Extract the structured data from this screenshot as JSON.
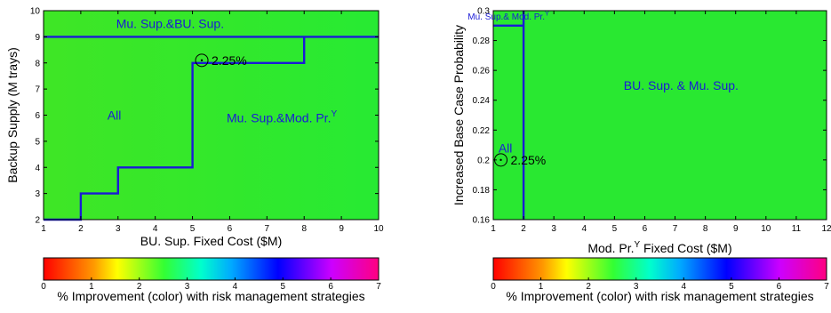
{
  "chart_data": [
    {
      "type": "heatmap",
      "panel": "left",
      "xlabel": "BU. Sup. Fixed Cost ($M)",
      "ylabel": "Backup Supply (M trays)",
      "xlim": [
        1,
        10
      ],
      "ylim": [
        2,
        10
      ],
      "x_ticks": [
        "1",
        "2",
        "3",
        "4",
        "5",
        "6",
        "7",
        "8",
        "9",
        "10"
      ],
      "y_ticks": [
        "2",
        "3",
        "4",
        "5",
        "6",
        "7",
        "8",
        "9",
        "10"
      ],
      "grid": false,
      "fill_color_value_range": [
        1.85,
        2.3
      ],
      "boundary_lines": [
        {
          "x": [
            1,
            10
          ],
          "y": [
            9,
            9
          ]
        },
        {
          "x": [
            1,
            2,
            2,
            3,
            3,
            5,
            5,
            8,
            8
          ],
          "y": [
            2,
            2,
            3,
            3,
            4,
            4,
            8,
            8,
            9
          ]
        }
      ],
      "region_labels": [
        {
          "text": "Mu. Sup.&BU. Sup.",
          "x": 4.4,
          "y": 9.5
        },
        {
          "text": "All",
          "x": 2.9,
          "y": 6.0
        },
        {
          "text": "Mu. Sup.&Mod. Pr.",
          "superscript": "Y",
          "x": 7.4,
          "y": 5.9
        }
      ],
      "marker": {
        "x": 5.25,
        "y": 8.1,
        "label": "2.25%"
      }
    },
    {
      "type": "heatmap",
      "panel": "right",
      "xlabel": "Mod. Pr.",
      "xlabel_superscript": "Y",
      "xlabel_suffix": " Fixed Cost ($M)",
      "ylabel": "Increased Base Case Probability",
      "xlim": [
        1,
        12
      ],
      "ylim": [
        0.16,
        0.3
      ],
      "x_ticks": [
        "1",
        "2",
        "3",
        "4",
        "5",
        "6",
        "7",
        "8",
        "9",
        "10",
        "11",
        "12"
      ],
      "y_ticks": [
        "0.16",
        "0.18",
        "0.2",
        "0.22",
        "0.24",
        "0.26",
        "0.28",
        "0.3"
      ],
      "grid": false,
      "fill_color_value_range": [
        2.0,
        2.0
      ],
      "boundary_lines": [
        {
          "x": [
            2,
            2
          ],
          "y": [
            0.16,
            0.3
          ]
        },
        {
          "x": [
            1,
            2
          ],
          "y": [
            0.29,
            0.29
          ]
        }
      ],
      "region_labels": [
        {
          "text": "Mu. Sup.& Mod. Pr.",
          "superscript": "Y",
          "x": 1.5,
          "y": 0.296,
          "small": true
        },
        {
          "text": "BU. Sup. & Mu. Sup.",
          "x": 7.2,
          "y": 0.25
        },
        {
          "text": "All",
          "x": 1.4,
          "y": 0.208
        }
      ],
      "marker": {
        "x": 1.25,
        "y": 0.2,
        "label": "2.25%"
      }
    }
  ],
  "colorbars": [
    {
      "panel": "left",
      "ticks": [
        "0",
        "1",
        "2",
        "3",
        "4",
        "5",
        "6",
        "7"
      ],
      "range": [
        0,
        7
      ],
      "label": "% Improvement (color) with risk management strategies"
    },
    {
      "panel": "right",
      "ticks": [
        "0",
        "1",
        "2",
        "3",
        "4",
        "5",
        "6",
        "7"
      ],
      "range": [
        0,
        7
      ],
      "label": "% Improvement (color) with risk management strategies"
    }
  ],
  "colors": {
    "line": "#1a1ad6",
    "label": "#1a1ad6",
    "axis": "#000000",
    "colormap": [
      "#ff0000",
      "#ff8000",
      "#ffff00",
      "#00ff00",
      "#00ffff",
      "#0000ff",
      "#ff00ff",
      "#ff0080"
    ]
  }
}
